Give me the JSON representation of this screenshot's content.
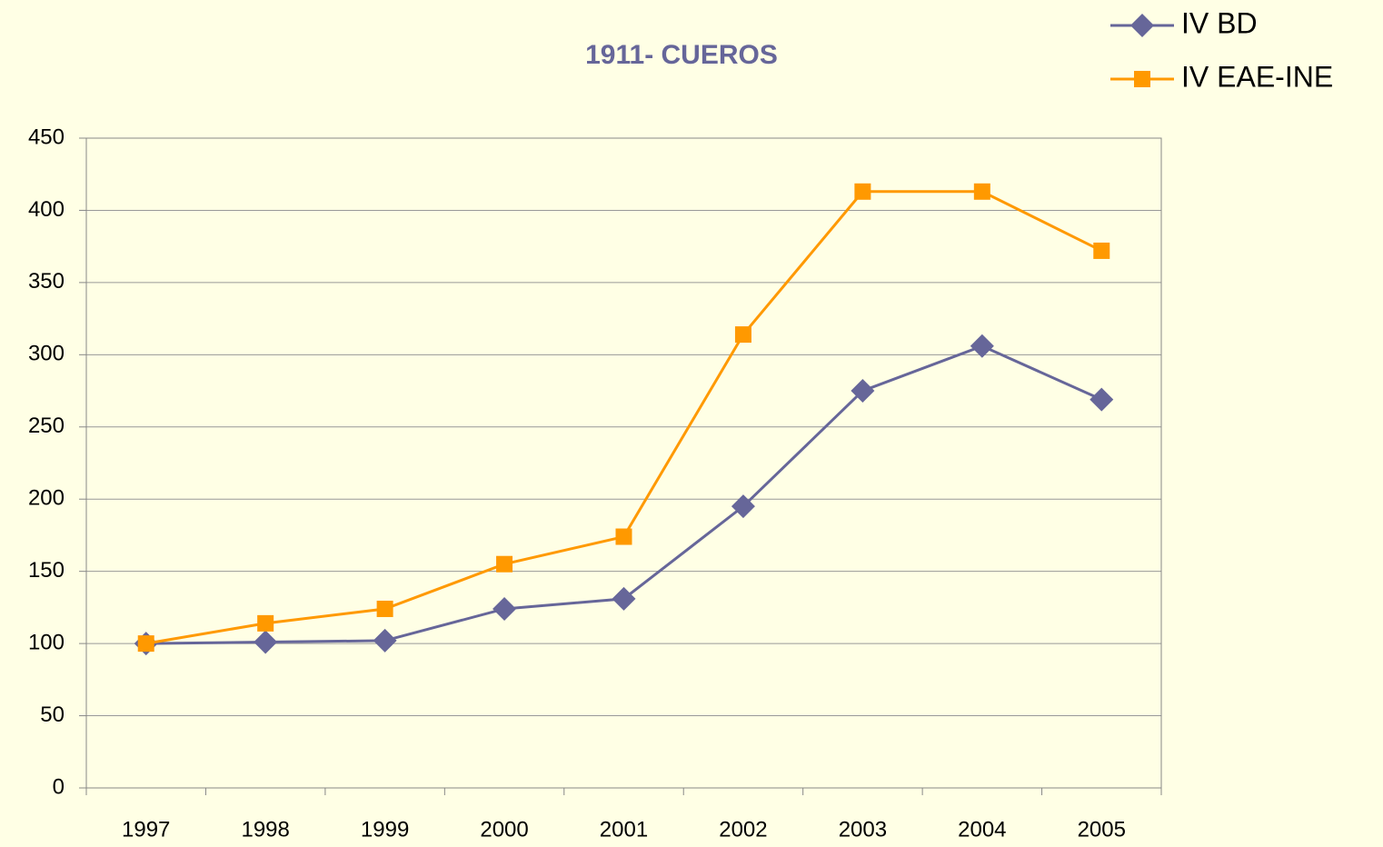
{
  "chart_data": {
    "type": "line",
    "title": "1911- CUEROS",
    "categories": [
      "1997",
      "1998",
      "1999",
      "2000",
      "2001",
      "2002",
      "2003",
      "2004",
      "2005"
    ],
    "series": [
      {
        "name": "IV BD",
        "color": "#666699",
        "marker": "diamond",
        "values": [
          100,
          101,
          102,
          124,
          131,
          195,
          275,
          306,
          269
        ]
      },
      {
        "name": "IV EAE-INE",
        "color": "#ff9900",
        "marker": "square",
        "values": [
          100,
          114,
          124,
          155,
          174,
          314,
          413,
          413,
          372
        ]
      }
    ],
    "ylim": [
      0,
      450
    ],
    "yticks": [
      0,
      50,
      100,
      150,
      200,
      250,
      300,
      350,
      400,
      450
    ],
    "grid": true,
    "legend": "top-right"
  }
}
